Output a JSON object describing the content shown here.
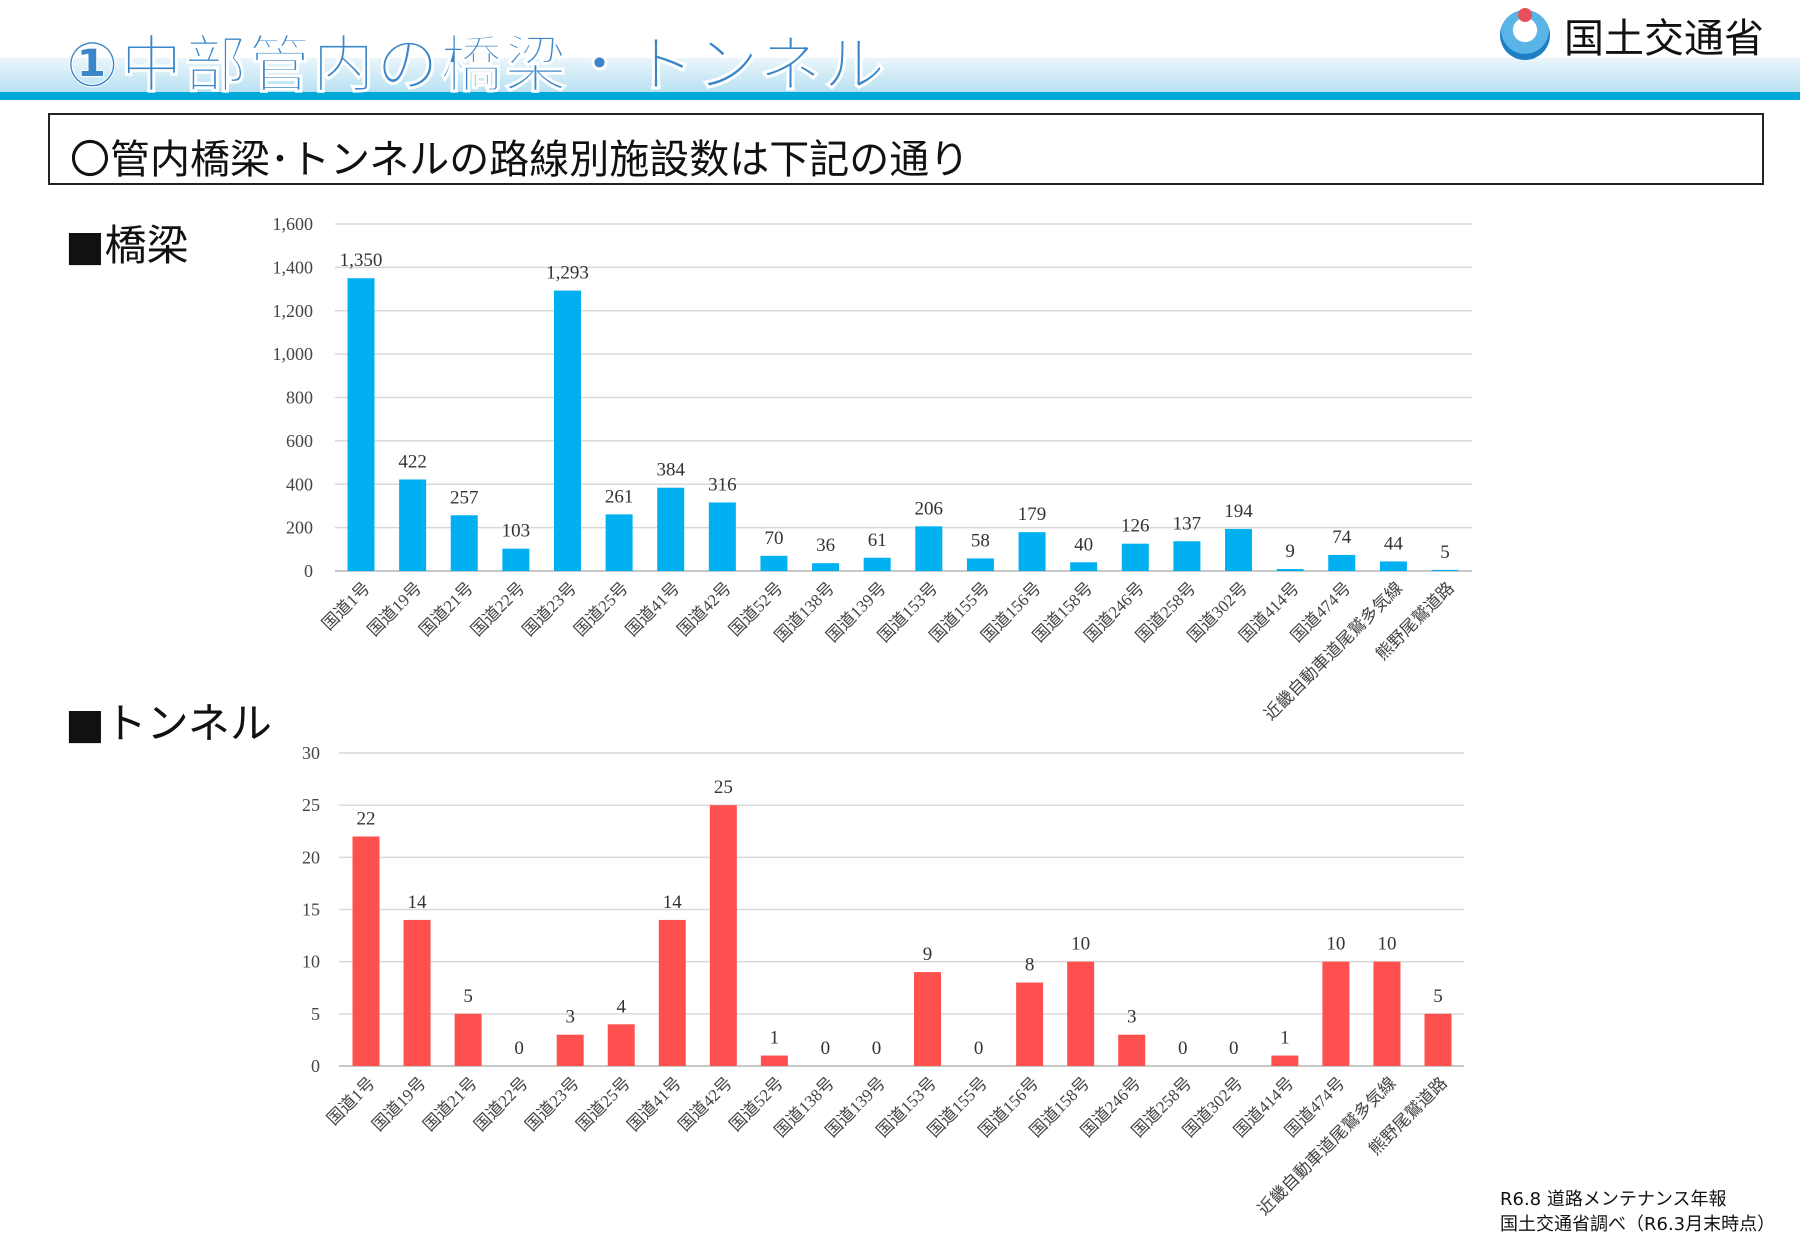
{
  "header": {
    "title": "①中部管内の橋梁・トンネル",
    "org": "国土交通省"
  },
  "summary": "〇管内橋梁･トンネルの路線別施設数は下記の通り",
  "sections": {
    "bridge": "■橋梁",
    "tunnel": "■トンネル"
  },
  "footer": {
    "line1": "R6.8 道路メンテナンス年報",
    "line2": "国土交通省調べ（R6.3月末時点）"
  },
  "colors": {
    "bridge": "#00b0f0",
    "tunnel": "#ff5050",
    "accent": "#3a86c8"
  },
  "chart_data": [
    {
      "type": "bar",
      "title": "橋梁",
      "categories": [
        "国道1号",
        "国道19号",
        "国道21号",
        "国道22号",
        "国道23号",
        "国道25号",
        "国道41号",
        "国道42号",
        "国道52号",
        "国道138号",
        "国道139号",
        "国道153号",
        "国道155号",
        "国道156号",
        "国道158号",
        "国道246号",
        "国道258号",
        "国道302号",
        "国道414号",
        "国道474号",
        "近畿自動車道尾鷲多気線",
        "熊野尾鷲道路"
      ],
      "values": [
        1350,
        422,
        257,
        103,
        1293,
        261,
        384,
        316,
        70,
        36,
        61,
        206,
        58,
        179,
        40,
        126,
        137,
        194,
        9,
        74,
        44,
        5
      ],
      "value_labels": [
        "1,350",
        "422",
        "257",
        "103",
        "1,293",
        "261",
        "384",
        "316",
        "70",
        "36",
        "61",
        "206",
        "58",
        "179",
        "40",
        "126",
        "137",
        "194",
        "9",
        "74",
        "44",
        "5"
      ],
      "yticks": [
        "0",
        "200",
        "400",
        "600",
        "800",
        "1,000",
        "1,200",
        "1,400",
        "1,600"
      ],
      "ylim": [
        0,
        1600
      ],
      "grid": true
    },
    {
      "type": "bar",
      "title": "トンネル",
      "categories": [
        "国道1号",
        "国道19号",
        "国道21号",
        "国道22号",
        "国道23号",
        "国道25号",
        "国道41号",
        "国道42号",
        "国道52号",
        "国道138号",
        "国道139号",
        "国道153号",
        "国道155号",
        "国道156号",
        "国道158号",
        "国道246号",
        "国道258号",
        "国道302号",
        "国道414号",
        "国道474号",
        "近畿自動車道尾鷲多気線",
        "熊野尾鷲道路"
      ],
      "values": [
        22,
        14,
        5,
        0,
        3,
        4,
        14,
        25,
        1,
        0,
        0,
        9,
        0,
        8,
        10,
        3,
        0,
        0,
        1,
        10,
        10,
        5
      ],
      "value_labels": [
        "22",
        "14",
        "5",
        "0",
        "3",
        "4",
        "14",
        "25",
        "1",
        "0",
        "0",
        "9",
        "0",
        "8",
        "10",
        "3",
        "0",
        "0",
        "1",
        "10",
        "10",
        "5"
      ],
      "yticks": [
        "0",
        "5",
        "10",
        "15",
        "20",
        "25",
        "30"
      ],
      "ylim": [
        0,
        30
      ],
      "grid": true
    }
  ]
}
